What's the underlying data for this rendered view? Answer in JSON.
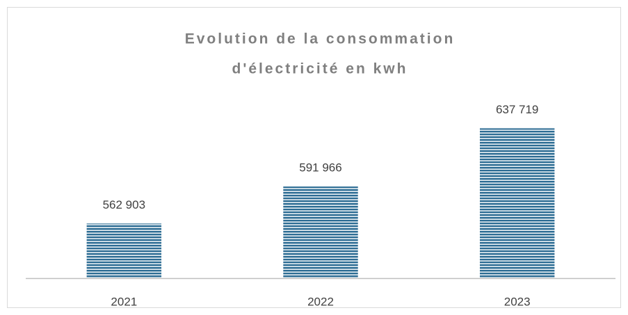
{
  "chart_data": {
    "type": "bar",
    "title": [
      "Evolution de la consommation",
      "d'électricité en kwh"
    ],
    "categories": [
      "2021",
      "2022",
      "2023"
    ],
    "values": [
      562903,
      591966,
      637719
    ],
    "value_labels": [
      "562 903",
      "591 966",
      "637 719"
    ],
    "color": "#2f6e95",
    "ylim": [
      520000,
      650000
    ]
  }
}
